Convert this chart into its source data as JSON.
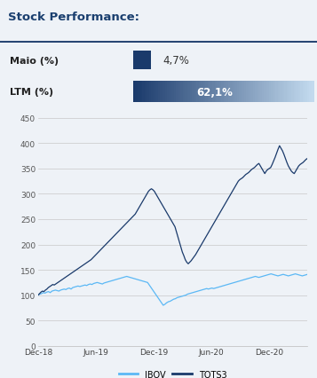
{
  "title": "Stock Performance:",
  "title_color": "#1A3F6F",
  "background_color": "#EEF2F7",
  "maio_label": "Maio (%)",
  "ltm_label": "LTM (%)",
  "maio_value": "4,7%",
  "ltm_value": "62,1%",
  "bar_dark_blue": "#1A3A6B",
  "bar_light_blue": "#C5DCF0",
  "header_bg": "#FFFFFF",
  "ylabel_values": [
    0,
    50,
    100,
    150,
    200,
    250,
    300,
    350,
    400,
    450
  ],
  "xlabels": [
    "Dec-18",
    "Jun-19",
    "Dec-19",
    "Jun-20",
    "Dec-20"
  ],
  "ibov_color": "#5BB8F5",
  "tots3_color": "#1A3A6B",
  "legend_ibov": "IBOV",
  "legend_tots3": "TOTS3",
  "ibov_data": [
    100,
    102,
    103,
    105,
    104,
    106,
    107,
    105,
    108,
    109,
    110,
    109,
    108,
    110,
    111,
    112,
    111,
    113,
    114,
    112,
    115,
    116,
    117,
    118,
    117,
    118,
    119,
    120,
    119,
    121,
    122,
    121,
    123,
    124,
    125,
    124,
    123,
    122,
    124,
    125,
    126,
    127,
    128,
    129,
    130,
    131,
    132,
    133,
    134,
    135,
    136,
    137,
    136,
    135,
    134,
    133,
    132,
    131,
    130,
    129,
    128,
    127,
    126,
    125,
    120,
    115,
    110,
    105,
    100,
    95,
    90,
    85,
    80,
    82,
    85,
    87,
    88,
    90,
    92,
    93,
    95,
    96,
    97,
    98,
    99,
    100,
    102,
    103,
    104,
    105,
    106,
    107,
    108,
    109,
    110,
    111,
    112,
    113,
    112,
    113,
    114,
    113,
    114,
    115,
    116,
    117,
    118,
    119,
    120,
    121,
    122,
    123,
    124,
    125,
    126,
    127,
    128,
    129,
    130,
    131,
    132,
    133,
    134,
    135,
    136,
    137,
    136,
    135,
    136,
    137,
    138,
    139,
    140,
    141,
    142,
    141,
    140,
    139,
    138,
    139,
    140,
    141,
    140,
    139,
    138,
    139,
    140,
    141,
    142,
    141,
    140,
    139,
    138,
    139,
    140,
    141
  ],
  "tots3_data": [
    100,
    103,
    106,
    108,
    107,
    110,
    112,
    115,
    117,
    119,
    121,
    120,
    122,
    124,
    126,
    128,
    130,
    132,
    134,
    136,
    138,
    140,
    142,
    144,
    146,
    148,
    150,
    152,
    154,
    156,
    158,
    160,
    162,
    164,
    166,
    168,
    170,
    173,
    176,
    179,
    182,
    185,
    188,
    191,
    194,
    197,
    200,
    203,
    206,
    209,
    212,
    215,
    218,
    221,
    224,
    227,
    230,
    233,
    236,
    239,
    242,
    245,
    248,
    251,
    254,
    257,
    260,
    265,
    270,
    275,
    280,
    285,
    290,
    295,
    300,
    305,
    308,
    310,
    308,
    305,
    300,
    295,
    290,
    285,
    280,
    275,
    270,
    265,
    260,
    255,
    250,
    245,
    240,
    235,
    225,
    215,
    205,
    195,
    185,
    178,
    170,
    165,
    162,
    165,
    168,
    172,
    176,
    180,
    185,
    190,
    195,
    200,
    205,
    210,
    215,
    220,
    225,
    230,
    235,
    240,
    245,
    250,
    255,
    260,
    265,
    270,
    275,
    280,
    285,
    290,
    295,
    300,
    305,
    310,
    315,
    320,
    325,
    328,
    330,
    332,
    335,
    338,
    340,
    342,
    345,
    348,
    350,
    352,
    355,
    358,
    360,
    355,
    350,
    345,
    340,
    345,
    348,
    350,
    352,
    358,
    365,
    372,
    380,
    388,
    395,
    390,
    385,
    378,
    370,
    362,
    355,
    350,
    345,
    342,
    340,
    345,
    350,
    355,
    358,
    360,
    362,
    365,
    368,
    370
  ]
}
